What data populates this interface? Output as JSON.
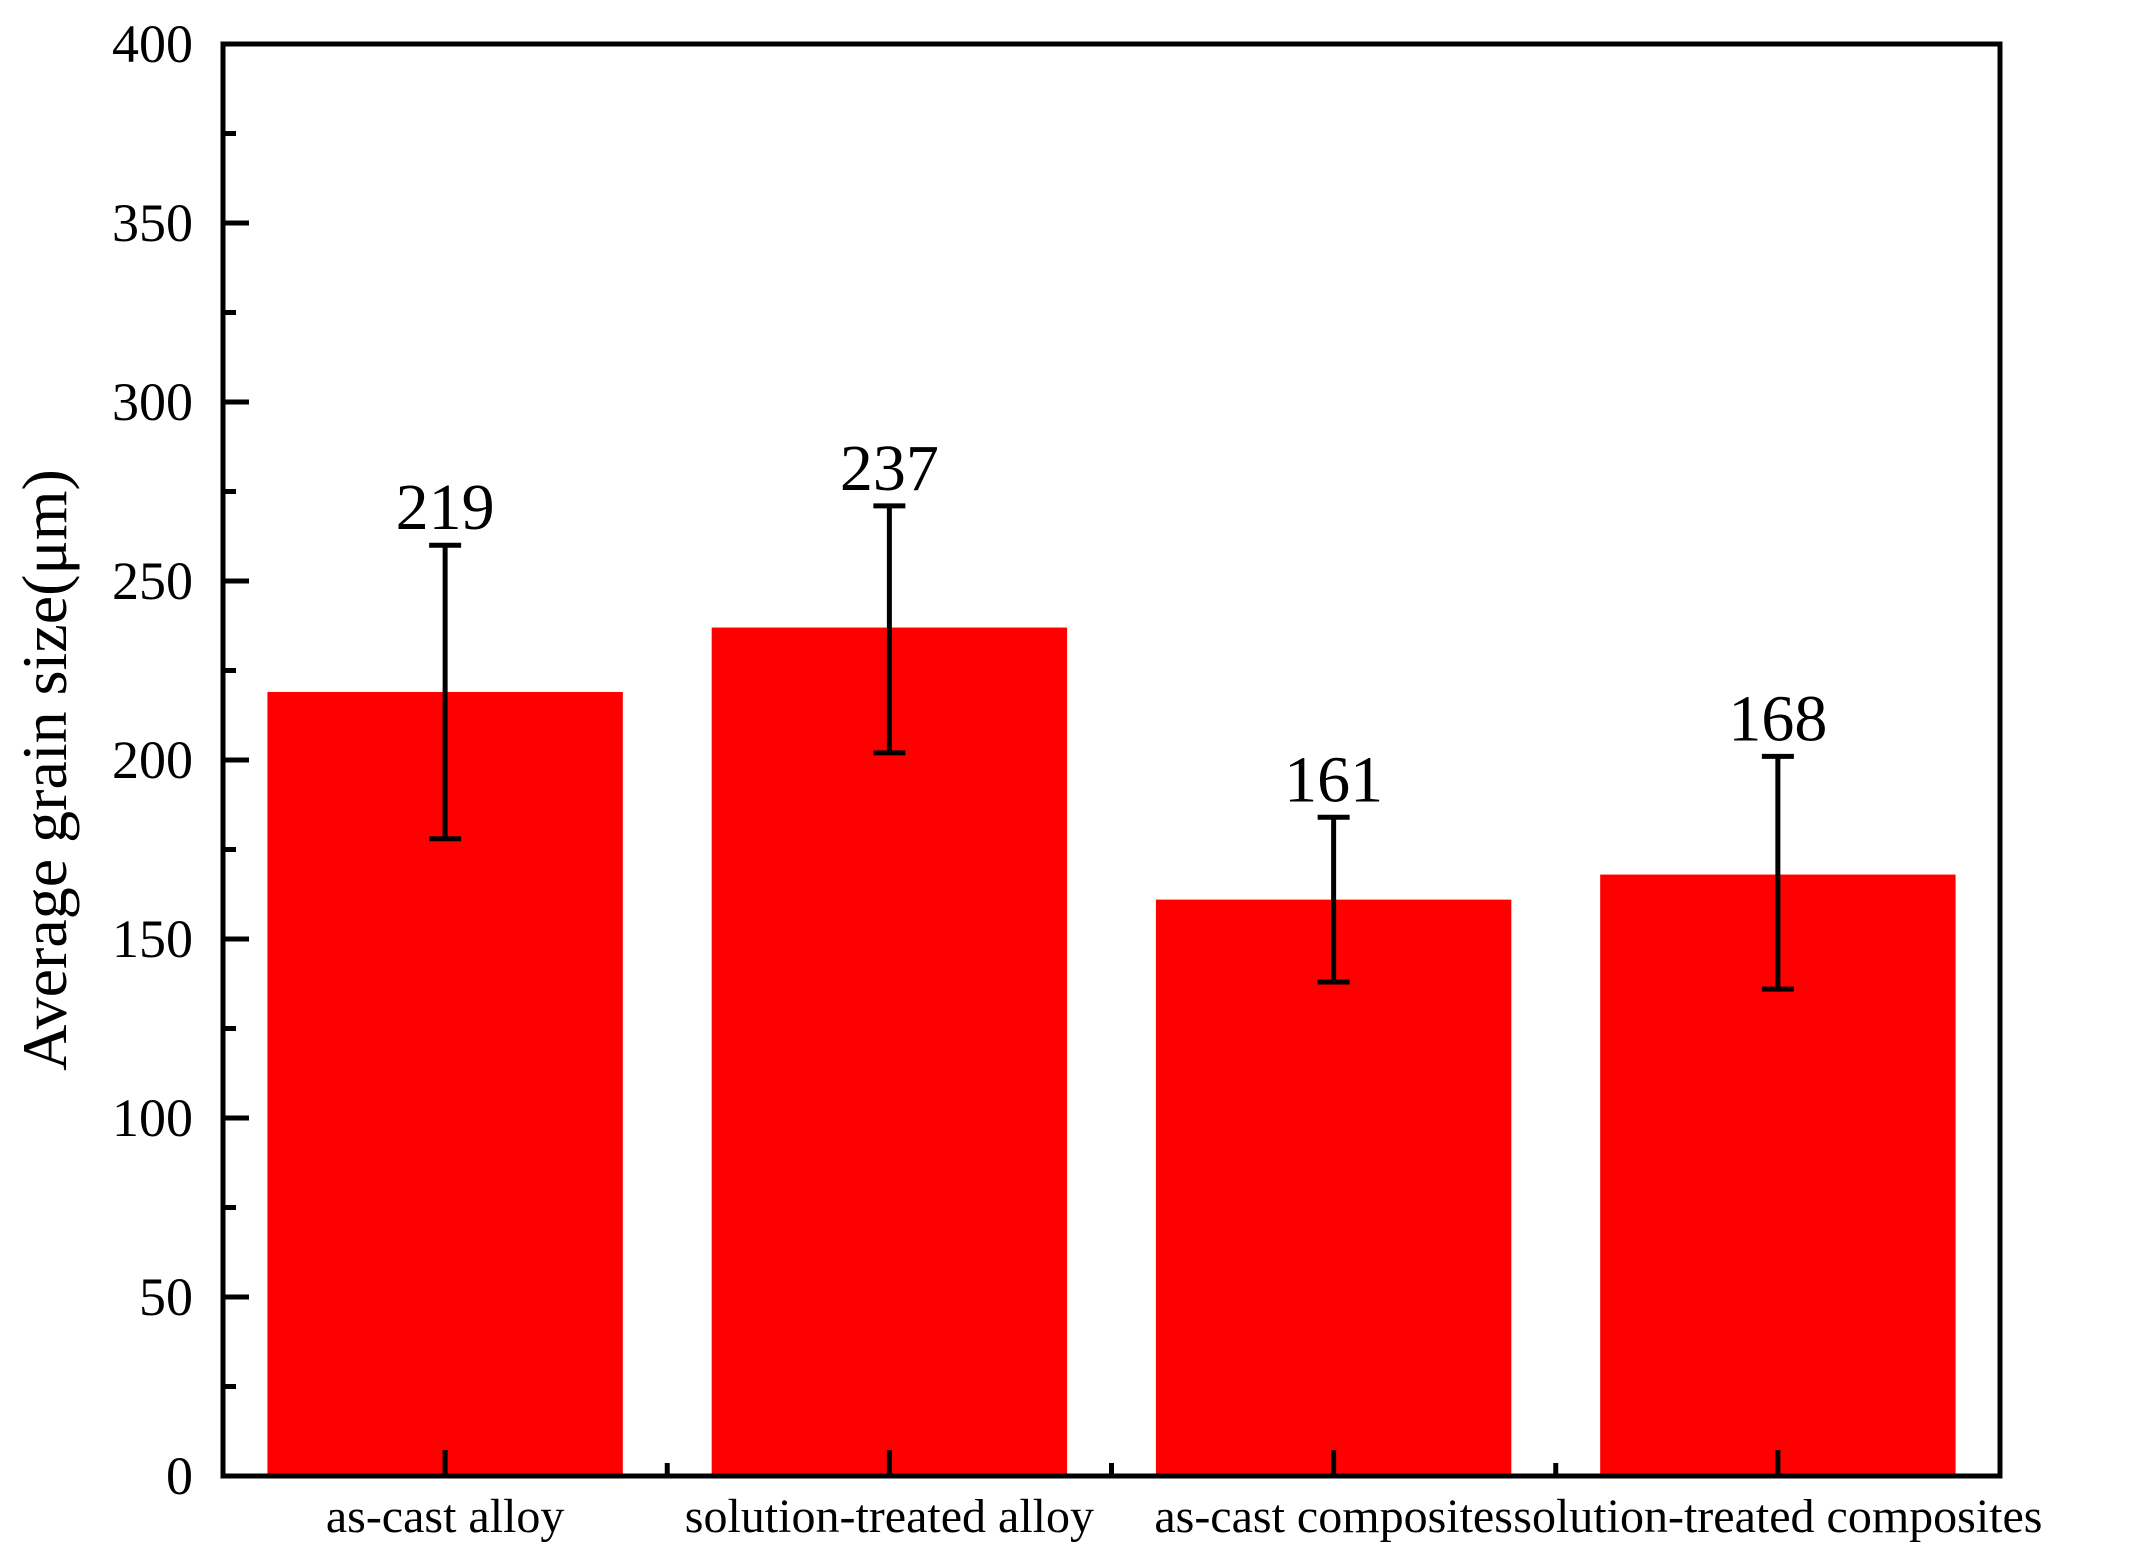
{
  "chart_data": {
    "type": "bar",
    "title": "",
    "xlabel": "",
    "ylabel": "Average grain size(μm)",
    "ylim": [
      0,
      400
    ],
    "yticks": [
      0,
      50,
      100,
      150,
      200,
      250,
      300,
      350,
      400
    ],
    "categories": [
      "as-cast alloy",
      "solution-treated alloy",
      "as-cast composites",
      "solution-treated composites"
    ],
    "values": [
      219,
      237,
      161,
      168
    ],
    "error_upper": [
      260,
      271,
      184,
      201
    ],
    "error_lower": [
      178,
      202,
      138,
      136
    ],
    "data_labels": [
      "219",
      "237",
      "161",
      "168"
    ],
    "bar_color": "#ff0000",
    "grid": false,
    "legend": "none"
  }
}
